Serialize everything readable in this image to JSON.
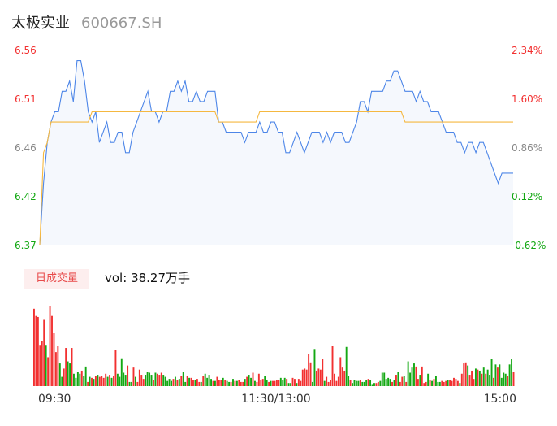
{
  "header": {
    "name": "太极实业",
    "code": "600667.SH"
  },
  "volume": {
    "badge": "日成交量",
    "label": "vol:",
    "value": "38.27万手"
  },
  "colors": {
    "up": "#f23030",
    "down": "#13a813",
    "price_line": "#4d86e8",
    "avg_line": "#f5b840",
    "area_fill": "#f5f8fd",
    "flat": "#888888"
  },
  "chart_data": [
    {
      "type": "line",
      "y_ticks_left": [
        "6.56",
        "6.51",
        "6.46",
        "6.42",
        "6.37"
      ],
      "y_ticks_right": [
        "2.34%",
        "1.60%",
        "0.86%",
        "0.12%",
        "-0.62%"
      ],
      "ylim": [
        6.37,
        6.56
      ],
      "x_ticks": [
        "09:30",
        "11:30/13:00",
        "15:00"
      ],
      "series": [
        {
          "values": [
            6.37,
            6.43,
            6.47,
            6.49,
            6.5,
            6.5,
            6.52,
            6.52,
            6.53,
            6.51,
            6.55,
            6.55,
            6.53,
            6.5,
            6.49,
            6.5,
            6.47,
            6.48,
            6.49,
            6.47,
            6.47,
            6.48,
            6.48,
            6.46,
            6.46,
            6.48,
            6.49,
            6.5,
            6.51,
            6.52,
            6.5,
            6.5,
            6.49,
            6.5,
            6.5,
            6.52,
            6.52,
            6.53,
            6.52,
            6.53,
            6.51,
            6.51,
            6.52,
            6.51,
            6.51,
            6.52,
            6.52,
            6.52,
            6.49,
            6.49,
            6.48,
            6.48,
            6.48,
            6.48,
            6.48,
            6.47,
            6.48,
            6.48,
            6.48,
            6.49,
            6.48,
            6.48,
            6.49,
            6.49,
            6.48,
            6.48,
            6.46,
            6.46,
            6.47,
            6.48,
            6.47,
            6.46,
            6.47,
            6.48,
            6.48,
            6.48,
            6.47,
            6.48,
            6.47,
            6.48,
            6.48,
            6.48,
            6.47,
            6.47,
            6.48,
            6.49,
            6.51,
            6.51,
            6.5,
            6.52,
            6.52,
            6.52,
            6.52,
            6.53,
            6.53,
            6.54,
            6.54,
            6.53,
            6.52,
            6.52,
            6.52,
            6.51,
            6.52,
            6.51,
            6.51,
            6.5,
            6.5,
            6.5,
            6.49,
            6.48,
            6.48,
            6.48,
            6.47,
            6.47,
            6.46,
            6.47,
            6.47,
            6.46,
            6.47,
            6.47,
            6.46,
            6.45,
            6.44,
            6.43,
            6.44,
            6.44,
            6.44,
            6.44
          ]
        },
        {
          "values": [
            6.37,
            6.46,
            6.47,
            6.49,
            6.49,
            6.49,
            6.49,
            6.49,
            6.49,
            6.49,
            6.49,
            6.49,
            6.49,
            6.49,
            6.5,
            6.5,
            6.5,
            6.5,
            6.5,
            6.5,
            6.5,
            6.5,
            6.5,
            6.5,
            6.5,
            6.5,
            6.5,
            6.5,
            6.5,
            6.5,
            6.5,
            6.5,
            6.5,
            6.5,
            6.5,
            6.5,
            6.5,
            6.5,
            6.5,
            6.5,
            6.5,
            6.5,
            6.5,
            6.5,
            6.5,
            6.5,
            6.5,
            6.5,
            6.49,
            6.49,
            6.49,
            6.49,
            6.49,
            6.49,
            6.49,
            6.49,
            6.49,
            6.49,
            6.49,
            6.5,
            6.5,
            6.5,
            6.5,
            6.5,
            6.5,
            6.5,
            6.5,
            6.5,
            6.5,
            6.5,
            6.5,
            6.5,
            6.5,
            6.5,
            6.5,
            6.5,
            6.5,
            6.5,
            6.5,
            6.5,
            6.5,
            6.5,
            6.5,
            6.5,
            6.5,
            6.5,
            6.5,
            6.5,
            6.5,
            6.5,
            6.5,
            6.5,
            6.5,
            6.5,
            6.5,
            6.5,
            6.5,
            6.5,
            6.49,
            6.49,
            6.49,
            6.49,
            6.49,
            6.49,
            6.49,
            6.49,
            6.49,
            6.49,
            6.49,
            6.49,
            6.49,
            6.49,
            6.49,
            6.49,
            6.49,
            6.49,
            6.49,
            6.49,
            6.49,
            6.49,
            6.49,
            6.49,
            6.49,
            6.49,
            6.49,
            6.49,
            6.49,
            6.49
          ]
        }
      ]
    },
    {
      "type": "bar",
      "values": [
        75,
        68,
        67,
        40,
        44,
        65,
        40,
        28,
        78,
        68,
        52,
        33,
        39,
        22,
        9,
        17,
        37,
        24,
        22,
        37,
        12,
        8,
        14,
        12,
        15,
        10,
        19,
        4,
        9,
        8,
        7,
        10,
        11,
        9,
        10,
        8,
        12,
        9,
        11,
        8,
        10,
        35,
        12,
        9,
        27,
        13,
        11,
        20,
        4,
        4,
        18,
        9,
        4,
        16,
        11,
        7,
        11,
        14,
        13,
        11,
        6,
        13,
        12,
        11,
        13,
        11,
        9,
        5,
        7,
        5,
        7,
        9,
        6,
        7,
        10,
        14,
        4,
        10,
        8,
        8,
        6,
        6,
        7,
        4,
        4,
        10,
        12,
        8,
        11,
        7,
        5,
        5,
        9,
        6,
        6,
        8,
        6,
        5,
        4,
        4,
        7,
        5,
        5,
        6,
        4,
        4,
        7,
        9,
        11,
        8,
        13,
        5,
        4,
        12,
        6,
        7,
        10,
        6,
        4,
        5,
        5,
        5,
        6,
        6,
        8,
        6,
        8,
        7,
        3,
        3,
        8,
        7,
        3,
        7,
        5,
        16,
        17,
        16,
        31,
        23,
        4,
        36,
        15,
        17,
        16,
        26,
        5,
        9,
        4,
        6,
        39,
        12,
        5,
        9,
        28,
        18,
        15,
        38,
        10,
        6,
        3,
        6,
        5,
        5,
        6,
        4,
        4,
        6,
        7,
        6,
        2,
        3,
        3,
        4,
        5,
        13,
        13,
        7,
        8,
        7,
        4,
        6,
        11,
        14,
        4,
        9,
        10,
        4,
        24,
        13,
        18,
        22,
        19,
        7,
        11,
        19,
        3,
        4,
        12,
        6,
        5,
        7,
        10,
        4,
        4,
        5,
        4,
        5,
        6,
        6,
        5,
        8,
        7,
        5,
        3,
        12,
        22,
        23,
        20,
        11,
        15,
        7,
        17,
        16,
        15,
        12,
        18,
        12,
        16,
        11,
        26,
        8,
        21,
        18,
        21,
        8,
        13,
        12,
        10,
        21,
        26,
        14
      ],
      "colors": "u,u,u,u,u,u,d,u,u,u,u,u,u,d,d,u,u,d,d,u,d,d,d,d,u,d,d,u,d,u,d,u,d,u,u,u,u,d,u,d,u,u,d,d,d,d,d,u,d,d,u,d,u,u,u,u,d,d,d,d,u,d,u,u,u,d,d,d,d,d,u,d,u,d,u,d,d,u,d,u,u,d,u,u,d,u,d,d,d,d,u,d,u,u,u,d,u,d,d,u,d,u,d,u,u,u,d,u,d,d,u,d,u,u,u,u,d,d,u,d,u,u,u,u,d,d,d,u,d,d,u,u,d,u,u,u,u,u,u,u,d,d,u,u,u,u,d,u,u,u,u,u,u,u,u,u,u,d,d,u,d,d,d,d,u,d,d,d,u,d,d,d,u,u,d,d,d,d,d,d,u,d,u,d,u,u,d,u,d,d,d,d,u,u,d,u,u,u,d,u,d,u,d,d,d,u,u,u,d,u,u,u,u,u,d,u,u,u,d,u,u,u,d,u,d,u,d,u,d,d,d,u,d,u,d,d,d,d,u,d,d,u,u,u,d,u,u,d,u,u,d,u,u,d,u,u,f"
    }
  ]
}
